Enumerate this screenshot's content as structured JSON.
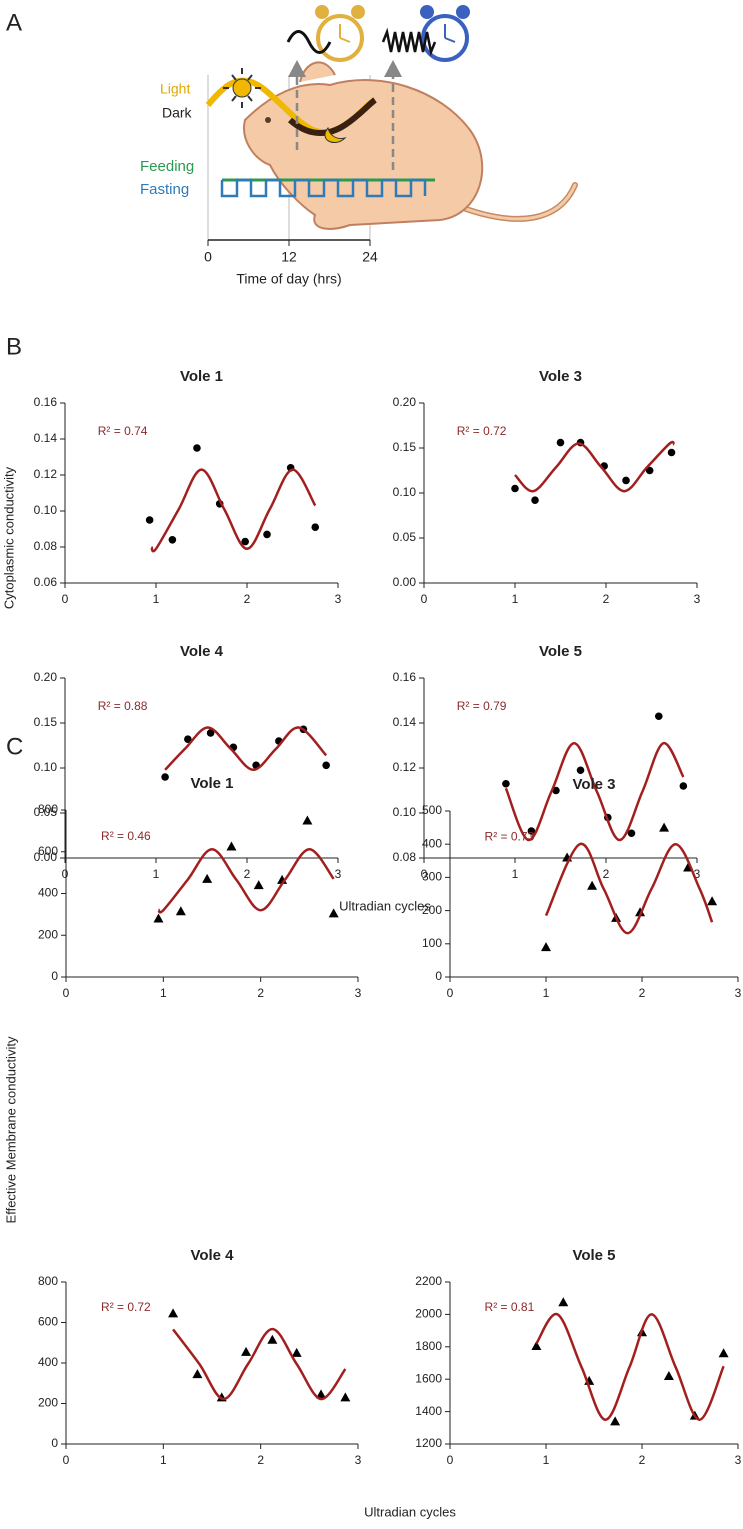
{
  "diagram": {
    "label": "A",
    "light": "Light",
    "dark": "Dark",
    "feeding": "Feeding",
    "fasting": "Fasting",
    "axis_ticks": [
      0,
      12,
      24
    ],
    "axis_label": "Time of day (hrs)"
  },
  "panels": [
    {
      "label": "B",
      "ylabel": "Cytoplasmic conductivity",
      "xlabel": "Ultradian cycles"
    },
    {
      "label": "C",
      "ylabel": "Effective Membrane conductivity",
      "xlabel": "Ultradian cycles"
    }
  ],
  "chart_data": [
    {
      "type": "scatter",
      "title": "Vole 1",
      "annotation": "R² = 0.74",
      "annotation_color": "#8b2a2a",
      "xlim": [
        0,
        3
      ],
      "xticks": [
        0,
        1,
        2,
        3
      ],
      "ylim": [
        0.06,
        0.16
      ],
      "yticks": [
        0.06,
        0.08,
        {
          "value": 0.1,
          "label": "0.10"
        },
        0.12,
        0.14,
        0.16
      ],
      "series": [
        {
          "mode": "markers",
          "marker": "circle",
          "color": "#000000",
          "x": [
            0.93,
            1.18,
            1.45,
            1.7,
            1.98,
            2.22,
            2.48,
            2.75
          ],
          "values": [
            0.095,
            0.084,
            0.135,
            0.104,
            0.083,
            0.087,
            0.124,
            0.091
          ]
        },
        {
          "mode": "line",
          "color": "#a31f1f",
          "x": [
            0.95,
            1.0,
            1.25,
            1.5,
            1.75,
            2.0,
            2.25,
            2.5,
            2.75
          ],
          "values": [
            0.08,
            0.079,
            0.101,
            0.123,
            0.101,
            0.079,
            0.101,
            0.123,
            0.103
          ]
        }
      ]
    },
    {
      "type": "scatter",
      "title": "Vole 3",
      "annotation": "R² = 0.72",
      "annotation_color": "#8b2a2a",
      "xlim": [
        0,
        3
      ],
      "xticks": [
        0,
        1,
        2,
        3
      ],
      "ylim": [
        0,
        0.2
      ],
      "yticks": [
        {
          "value": 0,
          "label": "0.00"
        },
        0.05,
        {
          "value": 0.1,
          "label": "0.10"
        },
        0.15,
        {
          "value": 0.2,
          "label": "0.20"
        }
      ],
      "series": [
        {
          "mode": "markers",
          "marker": "circle",
          "color": "#000000",
          "x": [
            1.0,
            1.22,
            1.5,
            1.72,
            1.98,
            2.22,
            2.48,
            2.72
          ],
          "values": [
            0.105,
            0.092,
            0.156,
            0.156,
            0.13,
            0.114,
            0.125,
            0.145
          ]
        },
        {
          "mode": "line",
          "color": "#a31f1f",
          "x": [
            1.0,
            1.2,
            1.45,
            1.7,
            1.95,
            2.2,
            2.45,
            2.7,
            2.75
          ],
          "values": [
            0.12,
            0.102,
            0.1285,
            0.155,
            0.1285,
            0.102,
            0.1285,
            0.155,
            0.154
          ]
        }
      ]
    },
    {
      "type": "scatter",
      "title": "Vole 4",
      "annotation": "R² = 0.88",
      "annotation_color": "#8b2a2a",
      "xlim": [
        0,
        3
      ],
      "xticks": [
        0,
        1,
        2,
        3
      ],
      "ylim": [
        0,
        0.2
      ],
      "yticks": [
        {
          "value": 0,
          "label": "0.00"
        },
        0.05,
        {
          "value": 0.1,
          "label": "0.10"
        },
        0.15,
        {
          "value": 0.2,
          "label": "0.20"
        }
      ],
      "series": [
        {
          "mode": "markers",
          "marker": "circle",
          "color": "#000000",
          "x": [
            1.1,
            1.35,
            1.6,
            1.85,
            2.1,
            2.35,
            2.62,
            2.87
          ],
          "values": [
            0.09,
            0.132,
            0.139,
            0.123,
            0.103,
            0.13,
            0.143,
            0.103
          ]
        },
        {
          "mode": "line",
          "color": "#a31f1f",
          "x": [
            1.1,
            1.32,
            1.57,
            1.82,
            2.07,
            2.32,
            2.57,
            2.87
          ],
          "values": [
            0.098,
            0.1215,
            0.145,
            0.1215,
            0.098,
            0.1215,
            0.145,
            0.114
          ]
        }
      ]
    },
    {
      "type": "scatter",
      "title": "Vole 5",
      "annotation": "R² = 0.79",
      "annotation_color": "#8b2a2a",
      "xlim": [
        0,
        3
      ],
      "xticks": [
        0,
        1,
        2,
        3
      ],
      "ylim": [
        0.08,
        0.16
      ],
      "yticks": [
        0.08,
        {
          "value": 0.1,
          "label": "0.10"
        },
        0.12,
        0.14,
        0.16
      ],
      "series": [
        {
          "mode": "markers",
          "marker": "circle",
          "color": "#000000",
          "x": [
            0.9,
            1.18,
            1.45,
            1.72,
            2.02,
            2.28,
            2.58,
            2.85
          ],
          "values": [
            0.113,
            0.092,
            0.11,
            0.119,
            0.098,
            0.091,
            0.143,
            0.112
          ]
        },
        {
          "mode": "line",
          "color": "#a31f1f",
          "x": [
            0.9,
            1.15,
            1.4,
            1.65,
            1.9,
            2.15,
            2.4,
            2.63,
            2.85
          ],
          "values": [
            0.111,
            0.088,
            0.1095,
            0.131,
            0.1095,
            0.088,
            0.1095,
            0.131,
            0.116
          ]
        }
      ]
    },
    {
      "type": "scatter",
      "title": "Vole 1",
      "annotation": "R² = 0.46",
      "annotation_color": "#8b2a2a",
      "xlim": [
        0,
        3
      ],
      "xticks": [
        0,
        1,
        2,
        3
      ],
      "ylim": [
        0,
        800
      ],
      "yticks": [
        0,
        200,
        400,
        600,
        800
      ],
      "series": [
        {
          "mode": "markers",
          "marker": "triangle",
          "color": "#000000",
          "x": [
            0.95,
            1.18,
            1.45,
            1.7,
            1.98,
            2.22,
            2.48,
            2.75
          ],
          "values": [
            280,
            315,
            470,
            625,
            440,
            465,
            750,
            305
          ]
        },
        {
          "mode": "line",
          "color": "#a31f1f",
          "x": [
            0.95,
            1.0,
            1.25,
            1.5,
            1.75,
            2.0,
            2.25,
            2.5,
            2.75
          ],
          "values": [
            322,
            320,
            466,
            612,
            466,
            320,
            466,
            612,
            470
          ]
        }
      ]
    },
    {
      "type": "scatter",
      "title": "Vole 3",
      "annotation": "R² = 0.73",
      "annotation_color": "#8b2a2a",
      "xlim": [
        0,
        3
      ],
      "xticks": [
        0,
        1,
        2,
        3
      ],
      "ylim": [
        0,
        500
      ],
      "yticks": [
        0,
        100,
        200,
        300,
        400,
        500
      ],
      "series": [
        {
          "mode": "markers",
          "marker": "triangle",
          "color": "#000000",
          "x": [
            1.0,
            1.22,
            1.48,
            1.73,
            1.98,
            2.23,
            2.48,
            2.73
          ],
          "values": [
            90,
            360,
            275,
            178,
            195,
            450,
            330,
            228
          ]
        },
        {
          "mode": "line",
          "color": "#a31f1f",
          "x": [
            1.0,
            1.35,
            1.6,
            1.85,
            2.1,
            2.35,
            2.6,
            2.73
          ],
          "values": [
            185,
            400,
            266,
            132,
            266,
            400,
            266,
            165
          ]
        }
      ]
    },
    {
      "type": "scatter",
      "title": "Vole 4",
      "annotation": "R² = 0.72",
      "annotation_color": "#8b2a2a",
      "xlim": [
        0,
        3
      ],
      "xticks": [
        0,
        1,
        2,
        3
      ],
      "ylim": [
        0,
        800
      ],
      "yticks": [
        0,
        200,
        400,
        600,
        800
      ],
      "series": [
        {
          "mode": "markers",
          "marker": "triangle",
          "color": "#000000",
          "x": [
            1.1,
            1.35,
            1.6,
            1.85,
            2.12,
            2.37,
            2.62,
            2.87
          ],
          "values": [
            645,
            345,
            230,
            455,
            515,
            450,
            245,
            230
          ]
        },
        {
          "mode": "line",
          "color": "#a31f1f",
          "x": [
            1.1,
            1.37,
            1.62,
            1.87,
            2.12,
            2.37,
            2.62,
            2.87
          ],
          "values": [
            566,
            395,
            222,
            395,
            568,
            395,
            222,
            370
          ]
        }
      ]
    },
    {
      "type": "scatter",
      "title": "Vole 5",
      "annotation": "R² = 0.81",
      "annotation_color": "#8b2a2a",
      "xlim": [
        0,
        3
      ],
      "xticks": [
        0,
        1,
        2,
        3
      ],
      "ylim": [
        1200,
        2200
      ],
      "yticks": [
        1200,
        1400,
        1600,
        1800,
        2000,
        2200
      ],
      "series": [
        {
          "mode": "markers",
          "marker": "triangle",
          "color": "#000000",
          "x": [
            0.9,
            1.18,
            1.45,
            1.72,
            2.0,
            2.28,
            2.55,
            2.85
          ],
          "values": [
            1805,
            2075,
            1590,
            1340,
            1890,
            1620,
            1375,
            1760
          ]
        },
        {
          "mode": "line",
          "color": "#a31f1f",
          "x": [
            0.9,
            1.12,
            1.37,
            1.62,
            1.87,
            2.1,
            2.35,
            2.6,
            2.85
          ],
          "values": [
            1820,
            2000,
            1675,
            1350,
            1675,
            2000,
            1675,
            1350,
            1680
          ]
        }
      ]
    }
  ]
}
